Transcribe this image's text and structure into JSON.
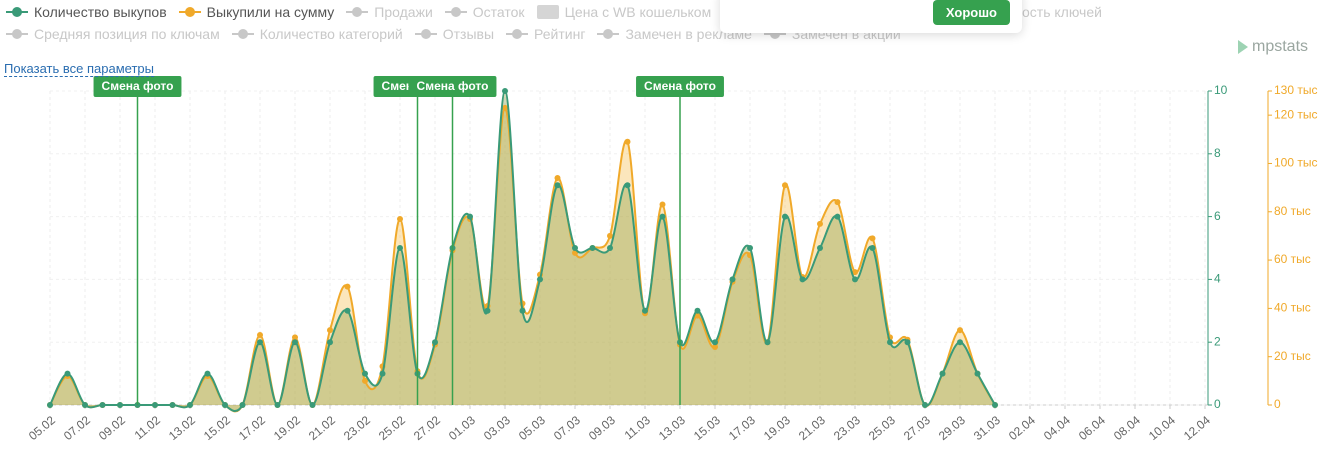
{
  "ui": {
    "legend_row1": [
      {
        "name": "Продажи",
        "icon": "line"
      },
      {
        "name": "Остаток",
        "icon": "line"
      },
      {
        "name": "Цена с WB кошельком",
        "icon": "square"
      },
      {
        "name": "ость ключей",
        "icon": "none"
      }
    ],
    "legend_row2": [
      {
        "name": "Средняя позиция по ключам",
        "icon": "line"
      },
      {
        "name": "Количество категорий",
        "icon": "line"
      },
      {
        "name": "Отзывы",
        "icon": "line"
      },
      {
        "name": "Рейтинг",
        "icon": "line"
      },
      {
        "name": "Замечен в рекламе",
        "icon": "line"
      },
      {
        "name": "Замечен в акции",
        "icon": "line"
      }
    ],
    "show_all": "Показать все параметры",
    "button": "Хорошо",
    "brand": "mpstats"
  },
  "chart_data": {
    "type": "line",
    "categories": [
      "05.02",
      null,
      "07.02",
      null,
      "09.02",
      null,
      "11.02",
      null,
      "13.02",
      null,
      "15.02",
      null,
      "17.02",
      null,
      "19.02",
      null,
      "21.02",
      null,
      "23.02",
      null,
      "25.02",
      null,
      "27.02",
      null,
      "01.03",
      null,
      "03.03",
      null,
      "05.03",
      null,
      "07.03",
      null,
      "09.03",
      null,
      "11.03",
      null,
      "13.03",
      null,
      "15.03",
      null,
      "17.03",
      null,
      "19.03",
      null,
      "21.03",
      null,
      "23.03",
      null,
      "25.03",
      null,
      "27.03",
      null,
      "29.03",
      null,
      "31.03",
      null,
      "02.04",
      null,
      "04.04",
      null,
      "06.04",
      null,
      "08.04",
      null,
      "10.04",
      null,
      "12.04"
    ],
    "series": [
      {
        "name": "Количество выкупов",
        "color": "#3a9a78",
        "axis": "y",
        "values": [
          0,
          1,
          0,
          0,
          0,
          0,
          0,
          0,
          0,
          1,
          0,
          0,
          2,
          0,
          2,
          0,
          2,
          3,
          1,
          1,
          5,
          1,
          2,
          5,
          6,
          3,
          10,
          3,
          4,
          7,
          5,
          5,
          5,
          7,
          3,
          6,
          2,
          3,
          2,
          4,
          5,
          2,
          6,
          4,
          5,
          6,
          4,
          5,
          2,
          2,
          0,
          1,
          2,
          1,
          0,
          null,
          null,
          null,
          null,
          null,
          null,
          null,
          null,
          null,
          null,
          null,
          null
        ]
      },
      {
        "name": "Выкупили на сумму",
        "color": "#f0a92a",
        "axis": "y2",
        "values": [
          0,
          12,
          0,
          0,
          0,
          0,
          0,
          0,
          0,
          12,
          0,
          0,
          29,
          0,
          28,
          0,
          31,
          49,
          10,
          16,
          77,
          14,
          25,
          64,
          77,
          41,
          123,
          42,
          54,
          94,
          63,
          65,
          70,
          109,
          38,
          83,
          25,
          37,
          24,
          51,
          62,
          26,
          91,
          53,
          75,
          84,
          55,
          69,
          28,
          27,
          0,
          13,
          31,
          13,
          0,
          null,
          null,
          null,
          null,
          null,
          null,
          null,
          null,
          null,
          null,
          null,
          null
        ]
      }
    ],
    "ylim": [
      0,
      10
    ],
    "yticks": [
      0,
      2,
      4,
      6,
      8,
      10
    ],
    "y2lim": [
      0,
      130
    ],
    "y2ticks": [
      0,
      {
        "value": 20,
        "label": "20 тыс"
      },
      {
        "value": 40,
        "label": "40 тыс"
      },
      {
        "value": 60,
        "label": "60 тыс"
      },
      {
        "value": 80,
        "label": "80 тыс"
      },
      {
        "value": 100,
        "label": "100 тыс"
      },
      {
        "value": 120,
        "label": "120 тыс"
      },
      {
        "value": 130,
        "label": "130 тыс"
      }
    ],
    "grid": true,
    "annotations": [
      {
        "label": "Смена фото",
        "at": 5
      },
      {
        "label": "Смена фото",
        "at": 21
      },
      {
        "label": "Смена фото",
        "at": 23
      },
      {
        "label": "Смена фото",
        "at": 36
      }
    ]
  }
}
